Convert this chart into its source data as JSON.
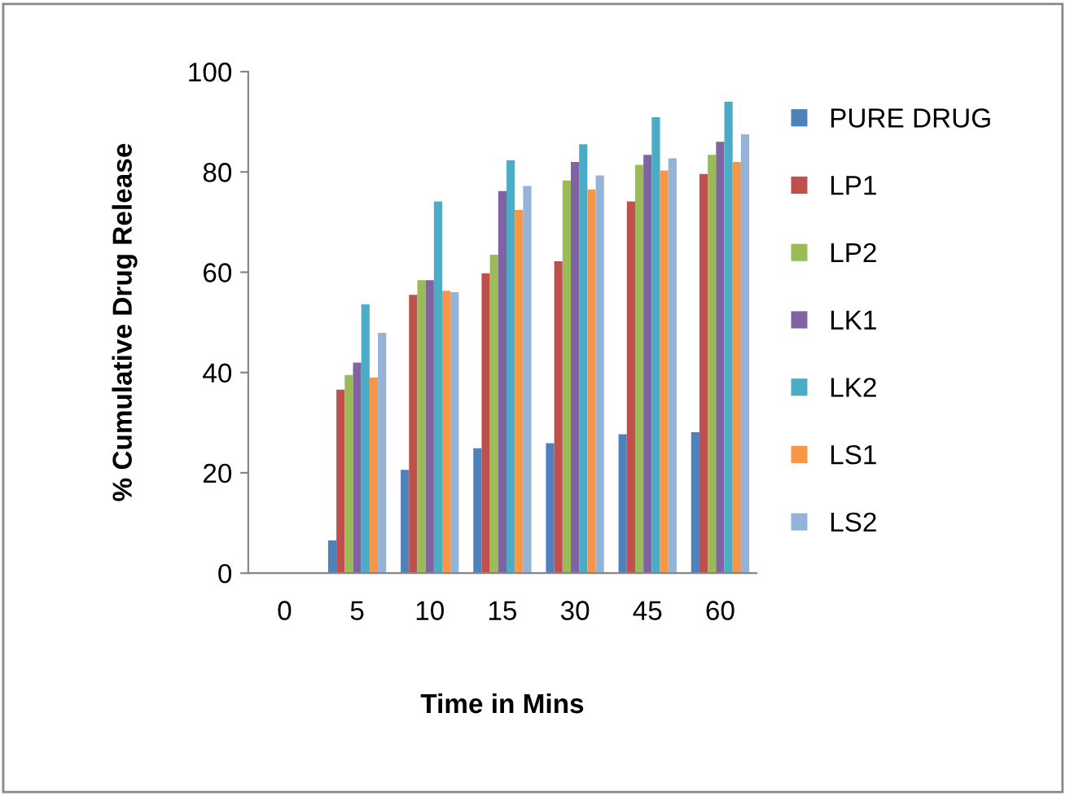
{
  "chart_data": {
    "type": "bar",
    "xlabel": "Time in Mins",
    "ylabel": "% Cumulative Drug Release",
    "categories": [
      "0",
      "5",
      "10",
      "15",
      "30",
      "45",
      "60"
    ],
    "ylim": [
      0,
      100
    ],
    "yticks": [
      0,
      20,
      40,
      60,
      80,
      100
    ],
    "grid": false,
    "legend": "right",
    "series": [
      {
        "name": "PURE DRUG",
        "color": "#4f81bd",
        "values": [
          0,
          6.5,
          20.6,
          24.9,
          25.9,
          27.7,
          28.1
        ]
      },
      {
        "name": "LP1",
        "color": "#c0504d",
        "values": [
          0,
          36.6,
          55.5,
          59.8,
          62.2,
          74.1,
          79.6
        ]
      },
      {
        "name": "LP2",
        "color": "#9bbb59",
        "values": [
          0,
          39.5,
          58.4,
          63.5,
          78.3,
          81.4,
          83.4
        ]
      },
      {
        "name": "LK1",
        "color": "#8064a2",
        "values": [
          0,
          42,
          58.4,
          76.2,
          82,
          83.4,
          86
        ]
      },
      {
        "name": "LK2",
        "color": "#4bacc6",
        "values": [
          0,
          53.6,
          74.1,
          82.3,
          85.5,
          90.9,
          94
        ]
      },
      {
        "name": "LS1",
        "color": "#f79646",
        "values": [
          0,
          39,
          56.3,
          72.4,
          76.5,
          80.3,
          82
        ]
      },
      {
        "name": "LS2",
        "color": "#95b3d7",
        "values": [
          0,
          47.9,
          56,
          77.2,
          79.3,
          82.7,
          87.5
        ]
      }
    ]
  }
}
